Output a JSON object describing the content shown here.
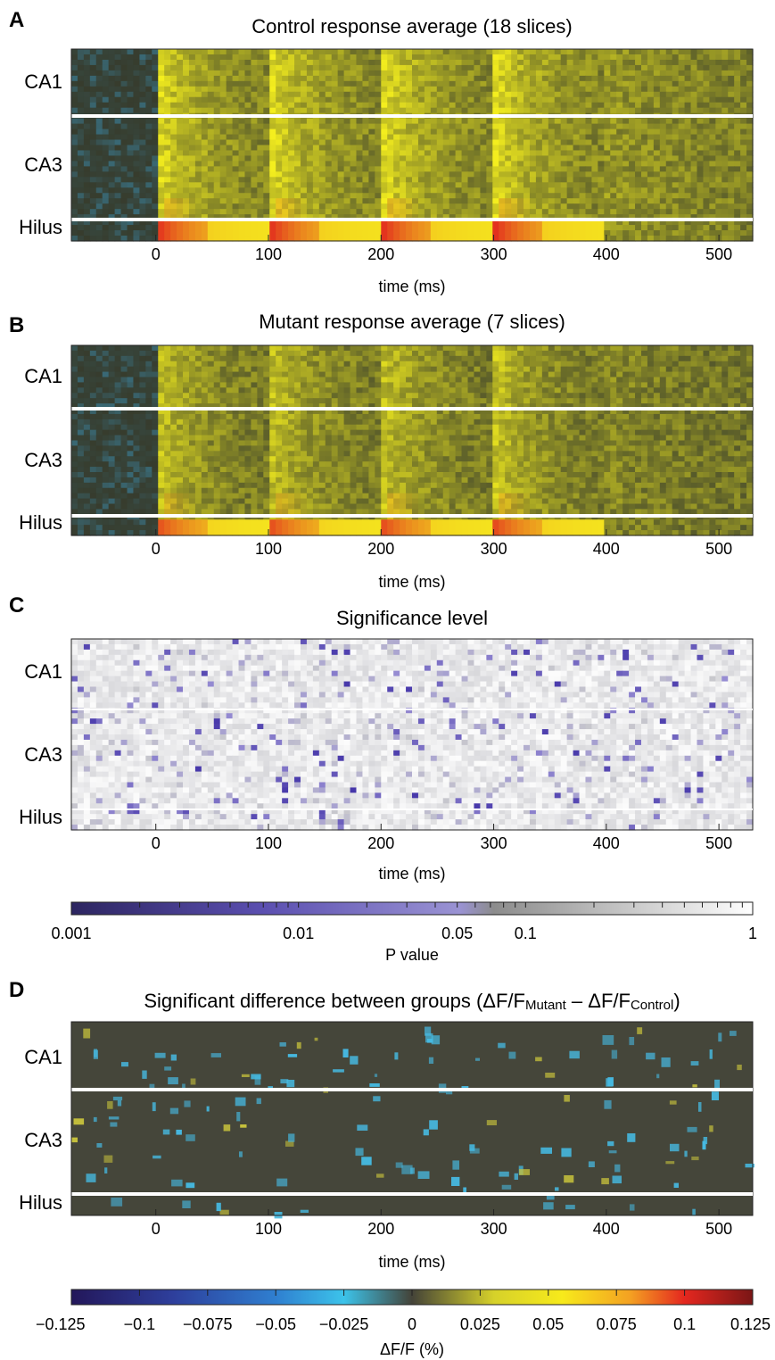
{
  "figure": {
    "rows": [
      "CA1",
      "CA3",
      "Hilus"
    ],
    "xlabel": "time (ms)",
    "x_ticks": [
      0,
      100,
      200,
      300,
      400,
      500
    ],
    "xlim": [
      -75,
      530
    ]
  },
  "panels": [
    {
      "letter": "A",
      "title": "Control response average (18 slices)",
      "kind": "response",
      "n_slices": 18
    },
    {
      "letter": "B",
      "title": "Mutant response average (7 slices)",
      "kind": "response",
      "n_slices": 7
    },
    {
      "letter": "C",
      "title": "Significance level",
      "kind": "significance"
    },
    {
      "letter": "D",
      "title_main": "Significant difference between groups (ΔF/F",
      "title_sub1": "Mutant",
      "title_mid": " – ΔF/F",
      "title_sub2": "Control",
      "title_end": ")",
      "kind": "difference"
    }
  ],
  "colorbar_p": {
    "label": "P value",
    "range": [
      0.001,
      1
    ],
    "scale": "log",
    "tick_labels": [
      {
        "value": 0.001,
        "text": "0.001"
      },
      {
        "value": 0.01,
        "text": "0.01"
      },
      {
        "value": 0.05,
        "text": "0.05"
      },
      {
        "value": 0.1,
        "text": "0.1"
      },
      {
        "value": 1,
        "text": "1"
      }
    ]
  },
  "colorbar_df": {
    "label": "ΔF/F (%)",
    "range": [
      -0.125,
      0.125
    ],
    "tick_labels": [
      {
        "value": -0.125,
        "text": "−0.125"
      },
      {
        "value": -0.1,
        "text": "−0.1"
      },
      {
        "value": -0.075,
        "text": "−0.075"
      },
      {
        "value": -0.05,
        "text": "−0.05"
      },
      {
        "value": -0.025,
        "text": "−0.025"
      },
      {
        "value": 0,
        "text": "0"
      },
      {
        "value": 0.025,
        "text": "0.025"
      },
      {
        "value": 0.05,
        "text": "0.05"
      },
      {
        "value": 0.075,
        "text": "0.075"
      },
      {
        "value": 0.1,
        "text": "0.1"
      },
      {
        "value": 0.125,
        "text": "0.125"
      }
    ]
  },
  "chart_data": [
    {
      "type": "heatmap",
      "title": "Control response average (18 slices)",
      "xlabel": "time (ms)",
      "xlim": [
        -75,
        530
      ],
      "y_categories": [
        "CA1",
        "CA3",
        "Hilus"
      ],
      "stimulus_times_ms": [
        0,
        100,
        200,
        300
      ],
      "colormap": "dark-yellow-red"
    },
    {
      "type": "heatmap",
      "title": "Mutant response average (7 slices)",
      "xlabel": "time (ms)",
      "xlim": [
        -75,
        530
      ],
      "y_categories": [
        "CA1",
        "CA3",
        "Hilus"
      ],
      "stimulus_times_ms": [
        0,
        100,
        200,
        300
      ],
      "colormap": "dark-yellow-red"
    },
    {
      "type": "heatmap",
      "title": "Significance level",
      "xlabel": "time (ms)",
      "xlim": [
        -75,
        530
      ],
      "y_categories": [
        "CA1",
        "CA3",
        "Hilus"
      ],
      "colorbar": "P value (log, 0.001–1)"
    },
    {
      "type": "heatmap",
      "title": "Significant difference between groups (ΔF/FMutant – ΔF/FControl)",
      "xlabel": "time (ms)",
      "xlim": [
        -75,
        530
      ],
      "y_categories": [
        "CA1",
        "CA3",
        "Hilus"
      ],
      "colorbar": "ΔF/F (%) −0.125–0.125"
    }
  ]
}
